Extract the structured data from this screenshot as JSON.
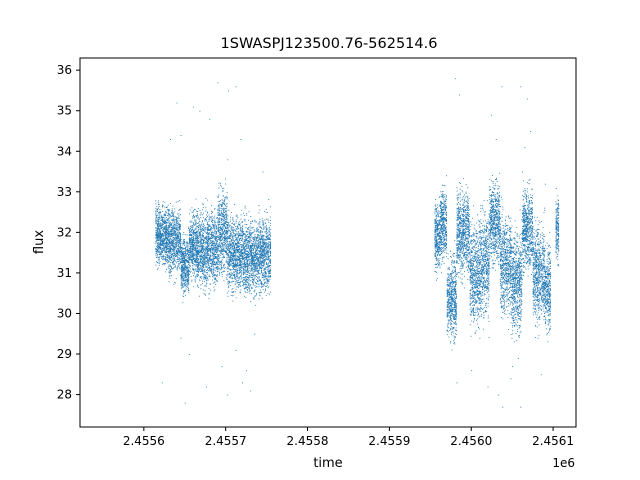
{
  "chart_data": {
    "type": "scatter",
    "title": "1SWASPJ123500.76-562514.6",
    "xlabel": "time",
    "ylabel": "flux",
    "x_offset_label": "1e6",
    "xlim": [
      2455522,
      2456128
    ],
    "ylim": [
      27.2,
      36.3
    ],
    "xticks": [
      2455600,
      2455700,
      2455800,
      2455900,
      2456000,
      2456100
    ],
    "xtick_labels": [
      "2.4556",
      "2.4557",
      "2.4558",
      "2.4559",
      "2.4560",
      "2.4561"
    ],
    "yticks": [
      28,
      29,
      30,
      31,
      32,
      33,
      34,
      35,
      36
    ],
    "ytick_labels": [
      "28",
      "29",
      "30",
      "31",
      "32",
      "33",
      "34",
      "35",
      "36"
    ],
    "grid": false,
    "colors": {
      "points": "#1f77b4"
    },
    "series": [
      {
        "segments": [
          {
            "x_start": 2455614,
            "x_end": 2455618,
            "center": 32.0,
            "spread": 0.35
          },
          {
            "x_start": 2455618,
            "x_end": 2455630,
            "center": 31.9,
            "spread": 0.35
          },
          {
            "x_start": 2455630,
            "x_end": 2455645,
            "center": 31.8,
            "spread": 0.4
          },
          {
            "x_start": 2455645,
            "x_end": 2455655,
            "center": 31.2,
            "spread": 0.35
          },
          {
            "x_start": 2455655,
            "x_end": 2455665,
            "center": 31.7,
            "spread": 0.4
          },
          {
            "x_start": 2455665,
            "x_end": 2455690,
            "center": 31.6,
            "spread": 0.45
          },
          {
            "x_start": 2455690,
            "x_end": 2455702,
            "center": 32.0,
            "spread": 0.5
          },
          {
            "x_start": 2455702,
            "x_end": 2455720,
            "center": 31.5,
            "spread": 0.45
          },
          {
            "x_start": 2455720,
            "x_end": 2455740,
            "center": 31.4,
            "spread": 0.45
          },
          {
            "x_start": 2455740,
            "x_end": 2455755,
            "center": 31.5,
            "spread": 0.45
          },
          {
            "x_start": 2455955,
            "x_end": 2455962,
            "center": 31.9,
            "spread": 0.4
          },
          {
            "x_start": 2455962,
            "x_end": 2455970,
            "center": 32.2,
            "spread": 0.45
          },
          {
            "x_start": 2455970,
            "x_end": 2455982,
            "center": 30.4,
            "spread": 0.5
          },
          {
            "x_start": 2455982,
            "x_end": 2455998,
            "center": 32.0,
            "spread": 0.5
          },
          {
            "x_start": 2455998,
            "x_end": 2456010,
            "center": 31.0,
            "spread": 0.6
          },
          {
            "x_start": 2456010,
            "x_end": 2456022,
            "center": 31.2,
            "spread": 0.6
          },
          {
            "x_start": 2456022,
            "x_end": 2456035,
            "center": 32.3,
            "spread": 0.5
          },
          {
            "x_start": 2456035,
            "x_end": 2456048,
            "center": 31.2,
            "spread": 0.6
          },
          {
            "x_start": 2456048,
            "x_end": 2456062,
            "center": 30.8,
            "spread": 0.6
          },
          {
            "x_start": 2456062,
            "x_end": 2456075,
            "center": 32.1,
            "spread": 0.5
          },
          {
            "x_start": 2456075,
            "x_end": 2456090,
            "center": 31.0,
            "spread": 0.6
          },
          {
            "x_start": 2456090,
            "x_end": 2456097,
            "center": 30.6,
            "spread": 0.5
          },
          {
            "x_start": 2456103,
            "x_end": 2456107,
            "center": 32.1,
            "spread": 0.4
          }
        ],
        "outliers": [
          [
            2455640,
            35.2
          ],
          [
            2455645,
            34.4
          ],
          [
            2455632,
            34.3
          ],
          [
            2455660,
            35.1
          ],
          [
            2455668,
            35.0
          ],
          [
            2455680,
            34.8
          ],
          [
            2455703,
            35.5
          ],
          [
            2455712,
            35.6
          ],
          [
            2455718,
            34.3
          ],
          [
            2455690,
            35.7
          ],
          [
            2455622,
            28.3
          ],
          [
            2455655,
            29.0
          ],
          [
            2455650,
            27.8
          ],
          [
            2455702,
            28.0
          ],
          [
            2455720,
            28.3
          ],
          [
            2455725,
            28.6
          ],
          [
            2455712,
            29.1
          ],
          [
            2455730,
            28.1
          ],
          [
            2455695,
            28.7
          ],
          [
            2455676,
            28.2
          ],
          [
            2455645,
            29.4
          ],
          [
            2455735,
            29.5
          ],
          [
            2455702,
            33.8
          ],
          [
            2455745,
            33.5
          ],
          [
            2455980,
            35.8
          ],
          [
            2455985,
            35.4
          ],
          [
            2456037,
            35.6
          ],
          [
            2456060,
            35.6
          ],
          [
            2456068,
            35.3
          ],
          [
            2456024,
            34.9
          ],
          [
            2456030,
            34.3
          ],
          [
            2456065,
            34.1
          ],
          [
            2456072,
            34.5
          ],
          [
            2456090,
            33.2
          ],
          [
            2456000,
            28.6
          ],
          [
            2456020,
            28.2
          ],
          [
            2456033,
            28.0
          ],
          [
            2456038,
            27.7
          ],
          [
            2456060,
            27.7
          ],
          [
            2456048,
            28.4
          ],
          [
            2456057,
            28.9
          ],
          [
            2456085,
            28.5
          ],
          [
            2456050,
            28.7
          ],
          [
            2456010,
            29.4
          ],
          [
            2455982,
            28.3
          ],
          [
            2456062,
            33.5
          ]
        ]
      }
    ]
  }
}
